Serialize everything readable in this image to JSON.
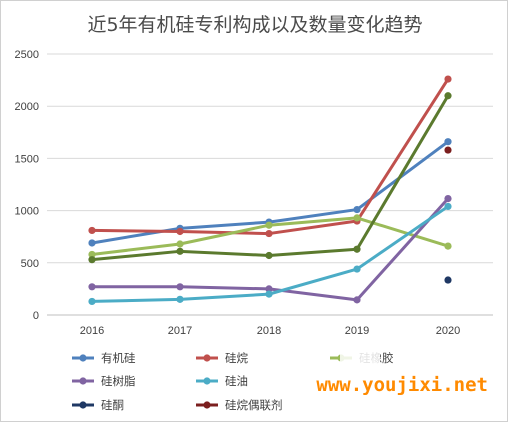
{
  "chart_data": {
    "type": "line",
    "title": "近5年有机硅专利构成以及数量变化趋势",
    "categories": [
      "2016",
      "2017",
      "2018",
      "2019",
      "2020"
    ],
    "ylim": [
      0,
      2500
    ],
    "yticks": [
      "0",
      "500",
      "1000",
      "1500",
      "2000",
      "2500"
    ],
    "grid": "horizontal",
    "legend_position": "bottom",
    "series": [
      {
        "name": "有机硅",
        "color": "#4f81bd",
        "values": [
          690,
          830,
          890,
          1010,
          1660
        ]
      },
      {
        "name": "硅烷",
        "color": "#c0504d",
        "values": [
          810,
          800,
          780,
          900,
          2260
        ]
      },
      {
        "name": "硅橡胶",
        "color": "#9bbb59",
        "values": [
          580,
          680,
          860,
          930,
          660
        ]
      },
      {
        "name": "硅树脂",
        "color": "#8064a2",
        "values": [
          270,
          270,
          250,
          145,
          1115
        ]
      },
      {
        "name": "硅油",
        "color": "#4bacc6",
        "values": [
          130,
          150,
          200,
          440,
          1040
        ]
      },
      {
        "name": "硅酮",
        "color": "#1f3864",
        "values": [
          null,
          null,
          null,
          null,
          335
        ]
      },
      {
        "name": "硅烷偶联剂",
        "color": "#7b1f1f",
        "values": [
          null,
          null,
          null,
          null,
          1580
        ]
      },
      {
        "name": "",
        "color": "#5b7a2e",
        "values": [
          530,
          610,
          570,
          630,
          2100
        ]
      }
    ]
  },
  "legend": [
    {
      "label": "有机硅",
      "color": "#4f81bd"
    },
    {
      "label": "硅烷",
      "color": "#c0504d"
    },
    {
      "label": "硅橡胶",
      "color": "#9bbb59"
    },
    {
      "label": "硅树脂",
      "color": "#8064a2"
    },
    {
      "label": "硅油",
      "color": "#4bacc6"
    },
    {
      "label": "",
      "color": "#ffffff"
    },
    {
      "label": "硅酮",
      "color": "#1f3864"
    },
    {
      "label": "硅烷偶联剂",
      "color": "#7b1f1f"
    }
  ],
  "watermark": "www.youjixi.net"
}
